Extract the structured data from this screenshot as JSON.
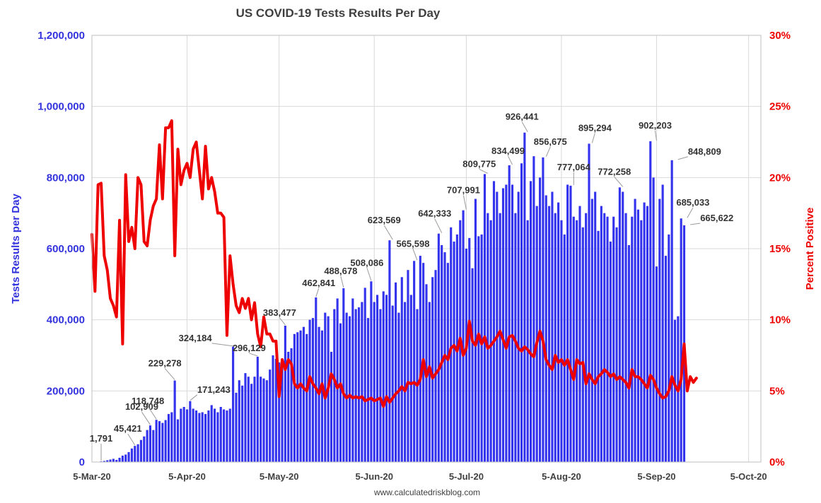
{
  "chart_data": {
    "type": "bar",
    "title": "US COVID-19 Tests Results Per Day",
    "source": "www.calculatedriskblog.com",
    "xlabel": "",
    "ylabel": "Tests Results per Day",
    "y2label": "Percent Positive",
    "start_date": "2020-03-01",
    "xlim_days": [
      4,
      222
    ],
    "ylim": [
      0,
      1200000
    ],
    "y2lim": [
      0,
      30
    ],
    "y_ticks": [
      {
        "value": 0,
        "label": "0"
      },
      {
        "value": 200000,
        "label": "200,000"
      },
      {
        "value": 400000,
        "label": "400,000"
      },
      {
        "value": 600000,
        "label": "600,000"
      },
      {
        "value": 800000,
        "label": "800,000"
      },
      {
        "value": 1000000,
        "label": "1,000,000"
      },
      {
        "value": 1200000,
        "label": "1,200,000"
      }
    ],
    "y2_ticks": [
      {
        "value": 0,
        "label": "0%"
      },
      {
        "value": 5,
        "label": "5%"
      },
      {
        "value": 10,
        "label": "10%"
      },
      {
        "value": 15,
        "label": "15%"
      },
      {
        "value": 20,
        "label": "20%"
      },
      {
        "value": 25,
        "label": "25%"
      },
      {
        "value": 30,
        "label": "30%"
      }
    ],
    "x_ticks": [
      {
        "day": 4,
        "label": "5-Mar-20"
      },
      {
        "day": 35,
        "label": "5-Apr-20"
      },
      {
        "day": 65,
        "label": "5-May-20"
      },
      {
        "day": 96,
        "label": "5-Jun-20"
      },
      {
        "day": 126,
        "label": "5-Jul-20"
      },
      {
        "day": 157,
        "label": "5-Aug-20"
      },
      {
        "day": 188,
        "label": "5-Sep-20"
      },
      {
        "day": 218,
        "label": "5-Oct-20"
      }
    ],
    "series": [
      {
        "name": "Tests Results per Day",
        "type": "bar",
        "color": "#3333ee",
        "first_day": 7,
        "values": [
          1791,
          3000,
          5000,
          7000,
          9000,
          6000,
          12000,
          18000,
          21000,
          28000,
          38000,
          45421,
          50000,
          62000,
          72000,
          90000,
          102909,
          90000,
          118748,
          115000,
          110000,
          118000,
          135000,
          140000,
          229278,
          120000,
          150000,
          155000,
          148000,
          171243,
          150000,
          145000,
          138000,
          140000,
          135000,
          145000,
          160000,
          150000,
          140000,
          155000,
          148000,
          145000,
          150000,
          324184,
          195000,
          230000,
          215000,
          250000,
          240000,
          220000,
          240000,
          296129,
          240000,
          235000,
          230000,
          260000,
          300000,
          290000,
          280000,
          265000,
          383477,
          310000,
          320000,
          360000,
          365000,
          370000,
          380000,
          360000,
          400000,
          405000,
          462841,
          380000,
          370000,
          420000,
          410000,
          310000,
          430000,
          460000,
          390000,
          488678,
          420000,
          410000,
          460000,
          430000,
          435000,
          450000,
          490000,
          405000,
          508086,
          450000,
          470000,
          430000,
          480000,
          470000,
          623569,
          440000,
          505000,
          420000,
          520000,
          450000,
          540000,
          470000,
          565598,
          430000,
          580000,
          560000,
          500000,
          450000,
          520000,
          540000,
          642333,
          610000,
          590000,
          560000,
          660000,
          620000,
          640000,
          680000,
          707991,
          600000,
          630000,
          545000,
          740000,
          635000,
          640000,
          809775,
          700000,
          680000,
          790000,
          760000,
          700000,
          770000,
          780000,
          834499,
          780000,
          700000,
          760000,
          840000,
          926441,
          680000,
          790000,
          860000,
          720000,
          800000,
          856675,
          750000,
          720000,
          760000,
          700000,
          730000,
          680000,
          640000,
          780000,
          777064,
          690000,
          680000,
          720000,
          660000,
          700000,
          895294,
          740000,
          760000,
          650000,
          720000,
          700000,
          690000,
          620000,
          690000,
          660000,
          772258,
          760000,
          700000,
          610000,
          690000,
          740000,
          710000,
          680000,
          730000,
          720000,
          902203,
          800000,
          550000,
          740000,
          780000,
          580000,
          640000,
          848809,
          400000,
          410000,
          685033,
          665622
        ]
      },
      {
        "name": "Percent Positive",
        "type": "line",
        "color": "#ee0000",
        "first_day": 4,
        "values": [
          16.0,
          12.0,
          19.5,
          19.6,
          14.5,
          13.5,
          11.5,
          11.0,
          10.2,
          17.0,
          8.3,
          20.2,
          15.5,
          16.5,
          15.0,
          20.0,
          19.5,
          15.5,
          15.2,
          17.0,
          18.0,
          18.5,
          22.3,
          18.5,
          23.5,
          23.5,
          24.0,
          14.5,
          22.0,
          19.5,
          20.5,
          21.0,
          20.0,
          22.0,
          22.5,
          20.5,
          18.5,
          22.2,
          19.2,
          20.0,
          19.0,
          17.5,
          17.5,
          17.2,
          8.9,
          14.5,
          12.5,
          11.0,
          10.5,
          11.5,
          10.8,
          11.5,
          10.0,
          11.2,
          9.0,
          8.1,
          10.2,
          9.0,
          9.0,
          8.5,
          8.5,
          4.6,
          7.2,
          6.5,
          7.2,
          6.9,
          5.5,
          5.2,
          5.5,
          5.2,
          5.0,
          6.0,
          5.5,
          5.2,
          4.8,
          5.5,
          4.5,
          5.2,
          6.2,
          5.8,
          5.2,
          5.5,
          4.8,
          4.5,
          4.7,
          4.5,
          4.6,
          4.5,
          4.6,
          4.3,
          4.4,
          4.5,
          4.3,
          4.4,
          4.5,
          3.9,
          4.6,
          4.2,
          4.5,
          4.8,
          5.0,
          5.3,
          5.0,
          5.6,
          5.5,
          5.6,
          5.4,
          5.8,
          7.2,
          6.0,
          6.7,
          5.9,
          6.2,
          6.5,
          7.0,
          7.5,
          7.2,
          8.0,
          8.2,
          7.8,
          8.7,
          7.5,
          8.0,
          9.9,
          8.5,
          8.2,
          9.0,
          8.3,
          8.8,
          8.0,
          8.2,
          8.5,
          8.8,
          9.2,
          8.6,
          8.0,
          8.8,
          8.9,
          8.5,
          8.0,
          7.8,
          8.1,
          7.9,
          7.6,
          7.4,
          8.4,
          9.2,
          8.5,
          7.2,
          6.8,
          6.5,
          7.5,
          7.0,
          7.2,
          6.8,
          7.2,
          6.5,
          5.8,
          7.2,
          6.9,
          7.0,
          5.5,
          6.2,
          5.8,
          5.5,
          6.0,
          6.2,
          6.5,
          6.3,
          6.0,
          6.2,
          5.8,
          6.0,
          5.8,
          5.6,
          5.2,
          6.5,
          6.0,
          6.0,
          5.8,
          5.5,
          5.2,
          6.1,
          5.8,
          5.2,
          4.8,
          4.5,
          4.6,
          5.0,
          6.0,
          5.4,
          5.0,
          5.8,
          8.3,
          5.0,
          6.0,
          5.6,
          5.9
        ]
      }
    ],
    "annotations": [
      {
        "label": "1,791",
        "day": 7,
        "value": 1791
      },
      {
        "label": "45,421",
        "day": 18,
        "value": 45421
      },
      {
        "label": "102,909",
        "day": 23,
        "value": 102909
      },
      {
        "label": "118,748",
        "day": 25,
        "value": 118748
      },
      {
        "label": "229,278",
        "day": 31,
        "value": 229278
      },
      {
        "label": "171,243",
        "day": 36,
        "value": 171243
      },
      {
        "label": "324,184",
        "day": 50,
        "value": 324184
      },
      {
        "label": "296,129",
        "day": 58,
        "value": 296129
      },
      {
        "label": "383,477",
        "day": 67,
        "value": 383477
      },
      {
        "label": "462,841",
        "day": 77,
        "value": 462841
      },
      {
        "label": "488,678",
        "day": 86,
        "value": 488678
      },
      {
        "label": "508,086",
        "day": 95,
        "value": 508086
      },
      {
        "label": "623,569",
        "day": 102,
        "value": 623569
      },
      {
        "label": "565,598",
        "day": 110,
        "value": 565598
      },
      {
        "label": "642,333",
        "day": 118,
        "value": 642333
      },
      {
        "label": "707,991",
        "day": 126,
        "value": 707991
      },
      {
        "label": "809,775",
        "day": 133,
        "value": 809775
      },
      {
        "label": "834,499",
        "day": 141,
        "value": 834499
      },
      {
        "label": "926,441",
        "day": 146,
        "value": 926441
      },
      {
        "label": "856,675",
        "day": 152,
        "value": 856675
      },
      {
        "label": "777,064",
        "day": 161,
        "value": 777064
      },
      {
        "label": "895,294",
        "day": 167,
        "value": 895294
      },
      {
        "label": "772,258",
        "day": 177,
        "value": 772258
      },
      {
        "label": "902,203",
        "day": 188,
        "value": 902203
      },
      {
        "label": "848,809",
        "day": 195,
        "value": 848809
      },
      {
        "label": "685,033",
        "day": 198,
        "value": 685033
      },
      {
        "label": "665,622",
        "day": 199,
        "value": 665622
      }
    ]
  }
}
